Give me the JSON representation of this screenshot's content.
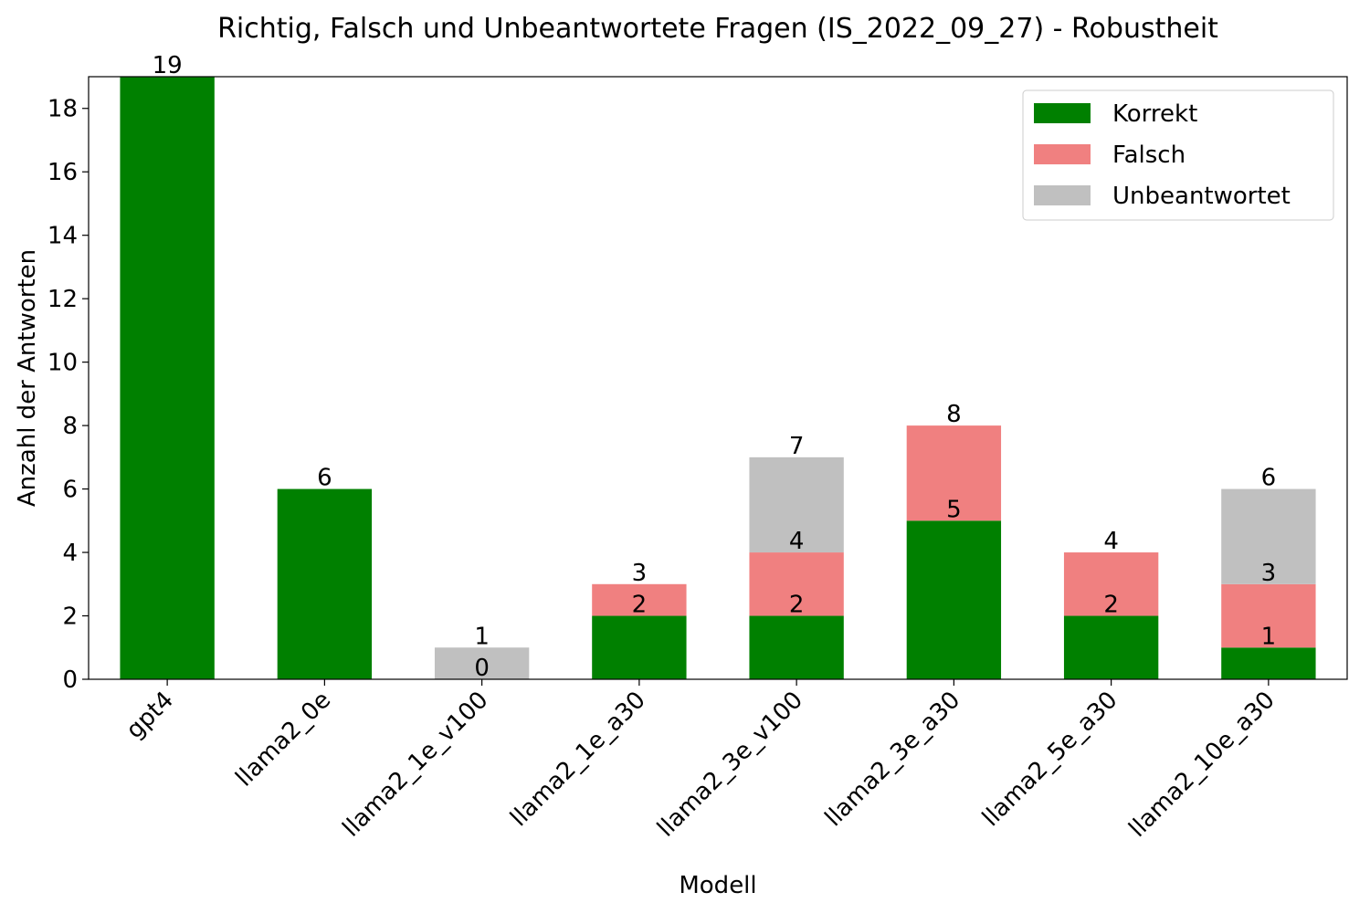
{
  "chart_data": {
    "type": "bar",
    "stacked": true,
    "title": "Richtig, Falsch und Unbeantwortete Fragen (IS_2022_09_27) - Robustheit",
    "xlabel": "Modell",
    "ylabel": "Anzahl der Antworten",
    "ylim": [
      0,
      19
    ],
    "yticks": [
      0,
      2,
      4,
      6,
      8,
      10,
      12,
      14,
      16,
      18
    ],
    "grid": false,
    "legend_position": "top-right",
    "categories": [
      "gpt4",
      "llama2_0e",
      "llama2_1e_v100",
      "llama2_1e_a30",
      "llama2_3e_v100",
      "llama2_3e_a30",
      "llama2_5e_a30",
      "llama2_10e_a30"
    ],
    "series": [
      {
        "name": "Korrekt",
        "color": "#008000",
        "values": [
          19,
          6,
          0,
          2,
          2,
          5,
          2,
          1
        ]
      },
      {
        "name": "Falsch",
        "color": "#f08080",
        "values": [
          0,
          0,
          0,
          1,
          2,
          3,
          2,
          2
        ]
      },
      {
        "name": "Unbeantwortet",
        "color": "#c0c0c0",
        "values": [
          0,
          0,
          1,
          0,
          3,
          0,
          0,
          3
        ]
      }
    ],
    "data_labels": [
      {
        "category": "gpt4",
        "labels": [
          "19"
        ]
      },
      {
        "category": "llama2_0e",
        "labels": [
          "6"
        ]
      },
      {
        "category": "llama2_1e_v100",
        "labels": [
          "0",
          "1"
        ]
      },
      {
        "category": "llama2_1e_a30",
        "labels": [
          "2",
          "3"
        ]
      },
      {
        "category": "llama2_3e_v100",
        "labels": [
          "2",
          "4",
          "7"
        ]
      },
      {
        "category": "llama2_3e_a30",
        "labels": [
          "5",
          "8"
        ]
      },
      {
        "category": "llama2_5e_a30",
        "labels": [
          "2",
          "4"
        ]
      },
      {
        "category": "llama2_10e_a30",
        "labels": [
          "1",
          "3",
          "6"
        ]
      }
    ]
  }
}
